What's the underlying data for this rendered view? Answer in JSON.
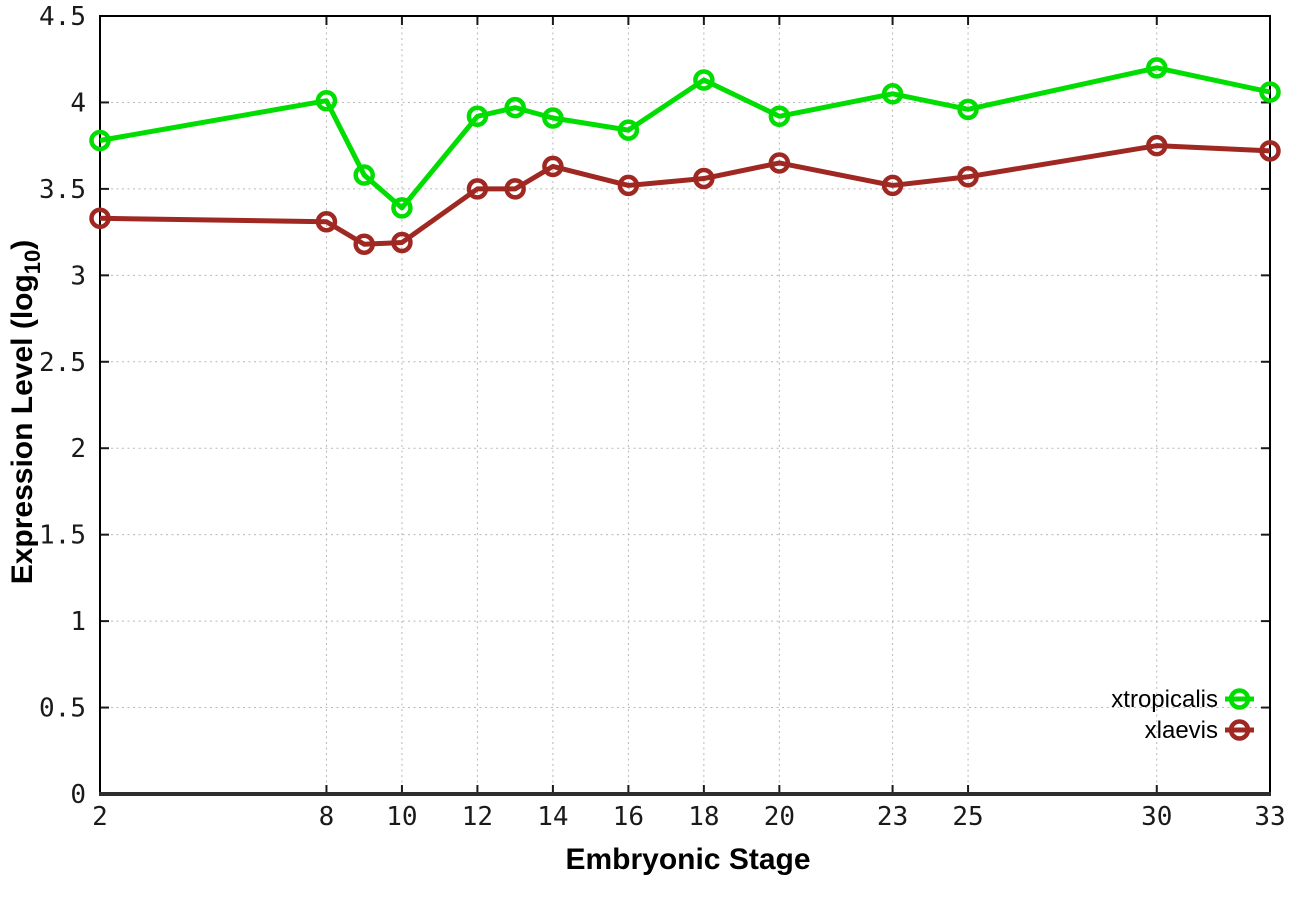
{
  "chart_data": {
    "type": "line",
    "title": "",
    "xlabel": "Embryonic Stage",
    "ylabel": "Expression Level (log10)",
    "ylabel_parts": {
      "main": "Expression Level (log",
      "sub": "10",
      "end": ")"
    },
    "xlim": [
      2,
      33
    ],
    "ylim": [
      0,
      4.5
    ],
    "grid": true,
    "grid_style": "dotted",
    "legend_position": "bottom-right",
    "marker": "open-circle",
    "x": [
      2,
      8,
      9,
      10,
      12,
      13,
      14,
      16,
      18,
      20,
      23,
      25,
      30,
      33
    ],
    "xticks": [
      2,
      8,
      10,
      12,
      14,
      16,
      18,
      20,
      23,
      25,
      30,
      33
    ],
    "xtick_labels": [
      "2",
      "8",
      "10",
      "12",
      "14",
      "16",
      "18",
      "20",
      "23",
      "25",
      "30",
      "33"
    ],
    "yticks": [
      0,
      0.5,
      1,
      1.5,
      2,
      2.5,
      3,
      3.5,
      4,
      4.5
    ],
    "ytick_labels": [
      "0",
      "0.5",
      "1",
      "1.5",
      "2",
      "2.5",
      "3",
      "3.5",
      "4",
      "4.5"
    ],
    "series": [
      {
        "name": "xtropicalis",
        "color": "#00dd00",
        "values": [
          3.78,
          4.01,
          3.58,
          3.39,
          3.92,
          3.97,
          3.91,
          3.84,
          4.13,
          3.92,
          4.05,
          3.96,
          4.2,
          4.06
        ]
      },
      {
        "name": "xlaevis",
        "color": "#a02822",
        "values": [
          3.33,
          3.31,
          3.18,
          3.19,
          3.5,
          3.5,
          3.63,
          3.52,
          3.56,
          3.65,
          3.52,
          3.57,
          3.75,
          3.72
        ]
      }
    ]
  }
}
